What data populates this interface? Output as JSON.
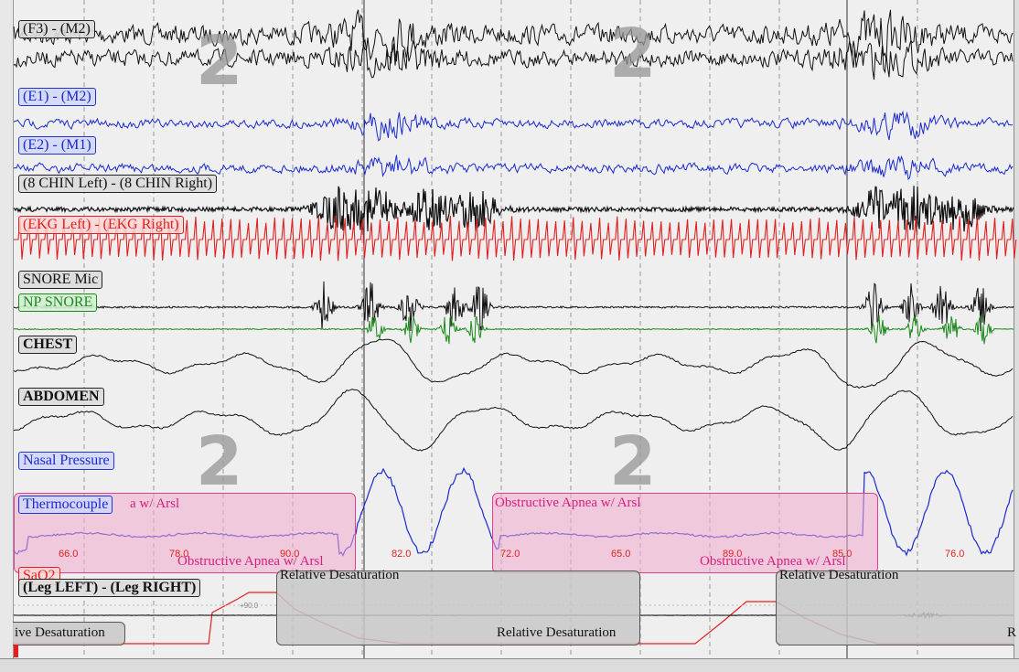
{
  "colors": {
    "eeg": "#111111",
    "eog": "#1a2acc",
    "ekg": "#e02020",
    "snore_np": "#1a8a1a",
    "event": "#e0408e",
    "stage": "#969696"
  },
  "channels": [
    {
      "label": "(F3) - (M2)",
      "color": "black"
    },
    {
      "label": "(E1) - (M2)",
      "color": "blue"
    },
    {
      "label": "(E2) - (M1)",
      "color": "blue"
    },
    {
      "label": "(8 CHIN Left) - (8 CHIN Right)",
      "color": "black"
    },
    {
      "label": "(EKG Left) - (EKG Right)",
      "color": "red"
    },
    {
      "label": "SNORE Mic",
      "color": "black"
    },
    {
      "label": "NP SNORE",
      "color": "green"
    },
    {
      "label": "CHEST",
      "color": "black"
    },
    {
      "label": "ABDOMEN",
      "color": "black"
    },
    {
      "label": "Nasal Pressure",
      "color": "blue"
    },
    {
      "label": "Thermocouple",
      "color": "blue"
    },
    {
      "label": "SaO2",
      "color": "red"
    },
    {
      "label": "(Leg LEFT) - (Leg RIGHT)",
      "color": "black"
    }
  ],
  "sleep_stage": "2",
  "events": {
    "partial_text": "a w/ Arsl",
    "apnea": "Obstructive Apnea w/ Arsl",
    "desaturation": "Relative Desaturation",
    "desaturation_partial_left": "ive Desaturation",
    "desaturation_partial_right": "R"
  },
  "spo2_values": [
    "66.0",
    "78.0",
    "90.0",
    "82.0",
    "72.0",
    "65.0",
    "89.0",
    "85.0",
    "76.0"
  ],
  "reference_label": "+90.0"
}
